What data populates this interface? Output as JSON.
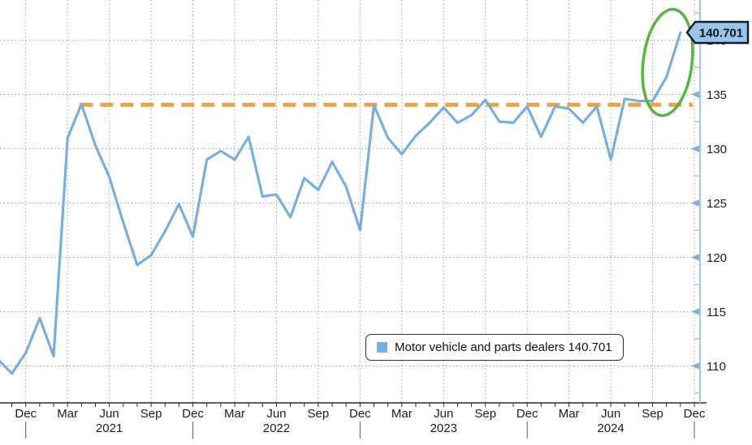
{
  "chart_data": {
    "type": "line",
    "title": "",
    "xlabel": "",
    "ylabel": "",
    "series": [
      {
        "name": "Motor vehicle and parts dealers",
        "months": [
          "2020-10",
          "2020-11",
          "2020-12",
          "2021-01",
          "2021-02",
          "2021-03",
          "2021-04",
          "2021-05",
          "2021-06",
          "2021-07",
          "2021-08",
          "2021-09",
          "2021-10",
          "2021-11",
          "2021-12",
          "2022-01",
          "2022-02",
          "2022-03",
          "2022-04",
          "2022-05",
          "2022-06",
          "2022-07",
          "2022-08",
          "2022-09",
          "2022-10",
          "2022-11",
          "2022-12",
          "2023-01",
          "2023-02",
          "2023-03",
          "2023-04",
          "2023-05",
          "2023-06",
          "2023-07",
          "2023-08",
          "2023-09",
          "2023-10",
          "2023-11",
          "2023-12",
          "2024-01",
          "2024-02",
          "2024-03",
          "2024-04",
          "2024-05",
          "2024-06",
          "2024-07",
          "2024-08",
          "2024-09",
          "2024-10",
          "2024-11"
        ],
        "values": [
          110.6,
          109.3,
          111.2,
          114.4,
          110.9,
          131.0,
          134.1,
          130.3,
          127.4,
          123.2,
          119.3,
          120.2,
          122.4,
          124.9,
          121.9,
          129.0,
          129.8,
          129.0,
          131.1,
          125.6,
          125.8,
          123.7,
          127.3,
          126.2,
          128.8,
          126.5,
          122.5,
          134.0,
          131.0,
          129.5,
          131.2,
          132.4,
          133.8,
          132.4,
          133.1,
          134.5,
          132.5,
          132.4,
          133.9,
          131.1,
          133.9,
          133.7,
          132.4,
          133.9,
          129.0,
          134.6,
          134.4,
          134.4,
          136.6,
          140.701
        ]
      }
    ],
    "last_value": 140.701,
    "ylim": [
      106.6,
      143.7
    ],
    "y_ticks": [
      110,
      115,
      120,
      125,
      130,
      135,
      140
    ],
    "y_minor_tick_step": 2.5,
    "x_quarter_labels": [
      {
        "label": "Dec",
        "i": 2
      },
      {
        "label": "Mar",
        "i": 5
      },
      {
        "label": "Jun",
        "i": 8
      },
      {
        "label": "Sep",
        "i": 11
      },
      {
        "label": "Dec",
        "i": 14
      },
      {
        "label": "Mar",
        "i": 17
      },
      {
        "label": "Jun",
        "i": 20
      },
      {
        "label": "Sep",
        "i": 23
      },
      {
        "label": "Dec",
        "i": 26
      },
      {
        "label": "Mar",
        "i": 29
      },
      {
        "label": "Jun",
        "i": 32
      },
      {
        "label": "Sep",
        "i": 35
      },
      {
        "label": "Dec",
        "i": 38
      },
      {
        "label": "Mar",
        "i": 41
      },
      {
        "label": "Jun",
        "i": 44
      },
      {
        "label": "Sep",
        "i": 47
      },
      {
        "label": "Dec",
        "i": 50
      }
    ],
    "year_labels": [
      {
        "label": "2021",
        "i": 8
      },
      {
        "label": "2022",
        "i": 20
      },
      {
        "label": "2023",
        "i": 32
      },
      {
        "label": "2024",
        "i": 44
      }
    ],
    "year_separator_i": [
      2,
      14,
      26,
      38,
      50
    ],
    "grid": true,
    "legend_position": "bottom-center",
    "annotations": {
      "dashed_line": {
        "value": 134.05,
        "start_month": "2021-04",
        "color": "#f0a33c"
      },
      "ellipse": {
        "over_months": [
          "2024-09",
          "2024-11"
        ],
        "color": "#56b545"
      },
      "value_tag": {
        "text": "140.701"
      }
    },
    "colors": {
      "series_line": "#79aede",
      "dashed_orange": "#f0a33c",
      "annotation_green": "#56b545",
      "gridline": "#8f8f8f",
      "x_axis": "#2b2b2b",
      "y_axis": "#a9c7e4",
      "y_tick_arrow": "#84aed8",
      "tag_fill": "#9cc3e8",
      "tag_border": "#101c2c"
    }
  },
  "legend": {
    "label": "Motor vehicle and parts dealers 140.701",
    "swatch_color": "#79aede"
  },
  "value_tag": {
    "text": "140.701"
  }
}
